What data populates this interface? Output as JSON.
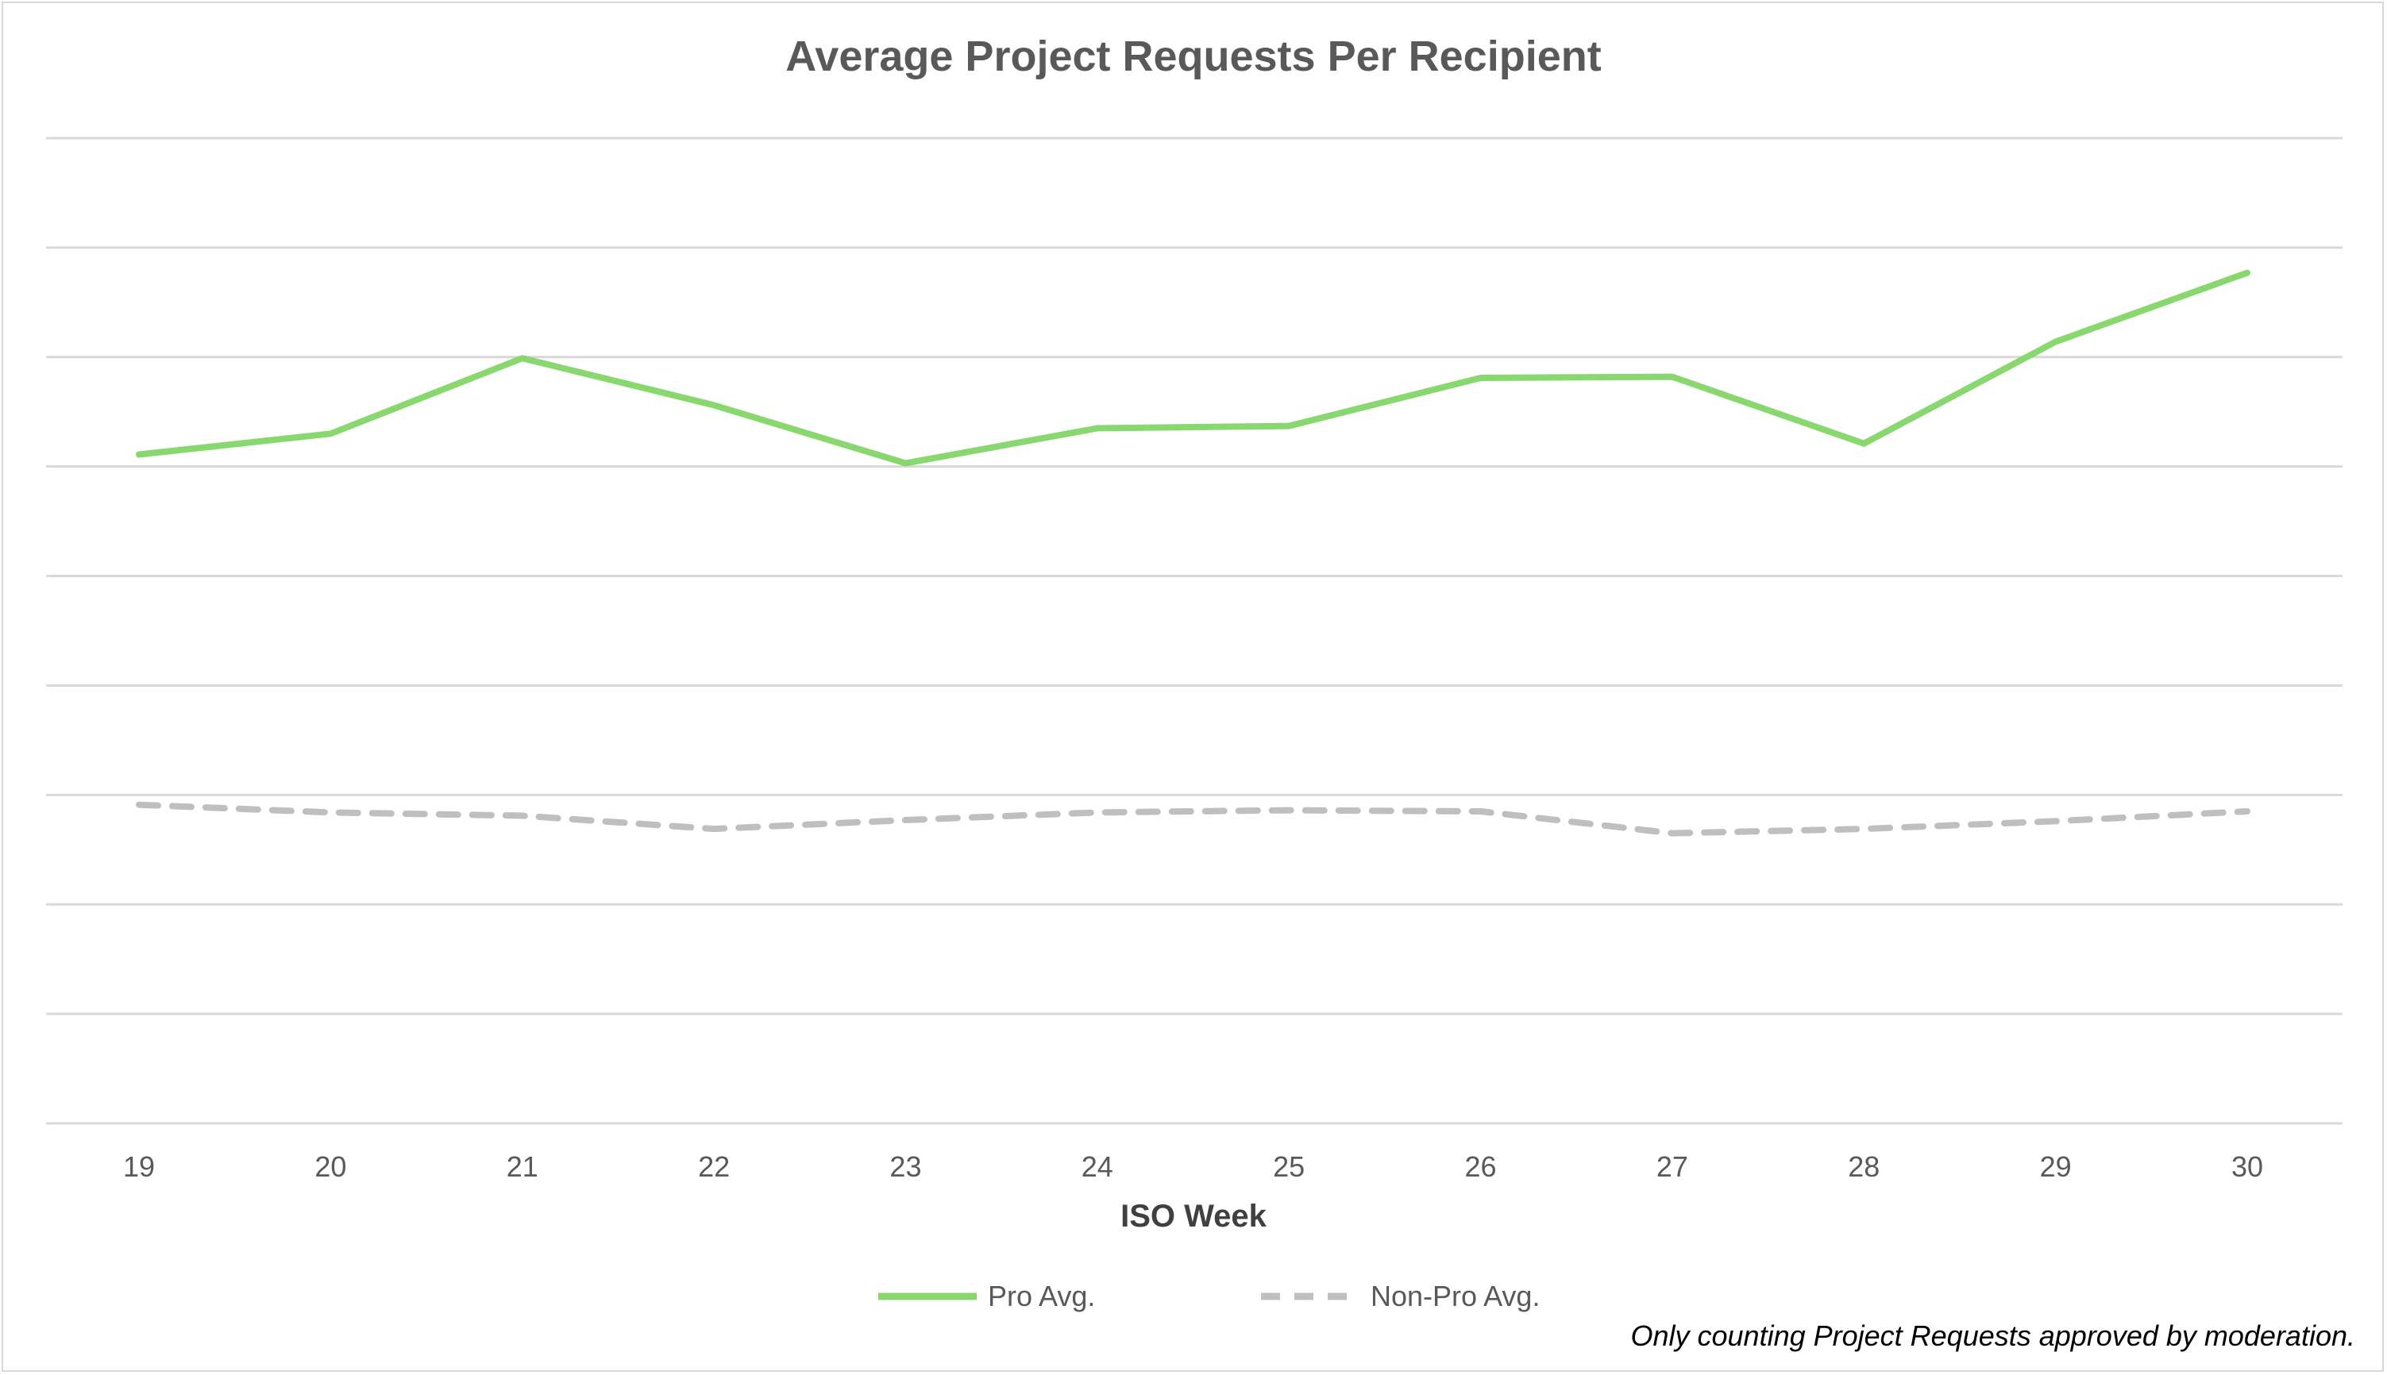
{
  "chart_data": {
    "type": "line",
    "title": "Average Project Requests Per Recipient",
    "xlabel": "ISO Week",
    "ylabel": "",
    "x": [
      "19",
      "20",
      "21",
      "22",
      "23",
      "24",
      "25",
      "26",
      "27",
      "28",
      "29",
      "30"
    ],
    "ylim": [
      0,
      9
    ],
    "grid": true,
    "y_tick_labels_shown": false,
    "legend_position": "bottom",
    "footnote": "Only counting Project Requests approved by moderation.",
    "series": [
      {
        "name": "Pro Avg.",
        "color": "#88d86f",
        "dash": "solid",
        "values": [
          6.11,
          6.3,
          6.99,
          6.56,
          6.03,
          6.35,
          6.37,
          6.81,
          6.82,
          6.21,
          7.14,
          7.77
        ]
      },
      {
        "name": "Non-Pro Avg.",
        "color": "#bfbfbf",
        "dash": "dashed",
        "values": [
          2.91,
          2.84,
          2.81,
          2.69,
          2.77,
          2.84,
          2.86,
          2.85,
          2.65,
          2.69,
          2.76,
          2.85
        ]
      }
    ]
  }
}
